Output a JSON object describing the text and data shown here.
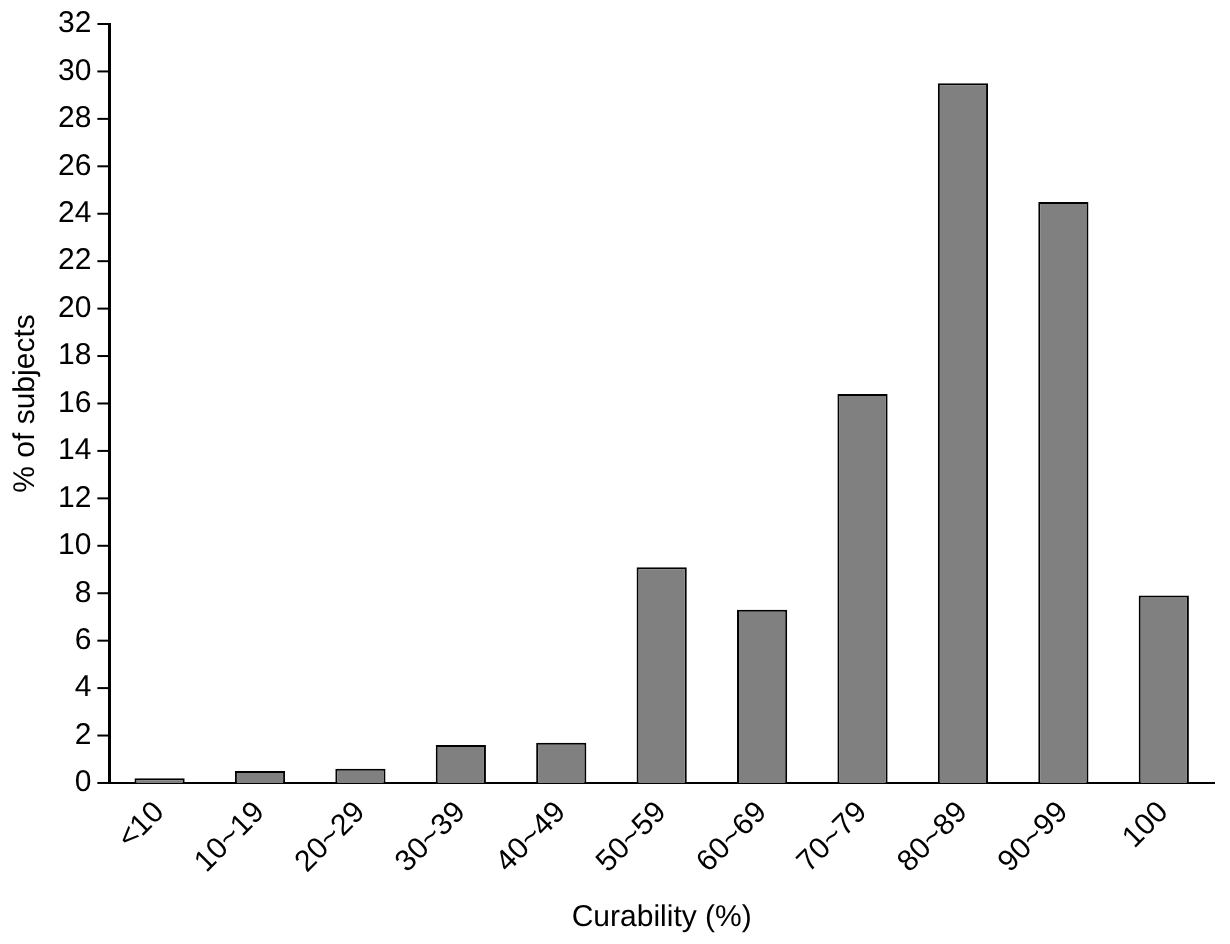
{
  "chart_data": {
    "type": "bar",
    "xlabel": "Curability (%)",
    "ylabel": "% of subjects",
    "categories": [
      "<10",
      "10~19",
      "20~29",
      "30~39",
      "40~49",
      "50~59",
      "60~69",
      "70~79",
      "80~89",
      "90~99",
      "100"
    ],
    "values": [
      0.2,
      0.5,
      0.6,
      1.6,
      1.7,
      9.1,
      7.3,
      16.4,
      29.5,
      24.5,
      7.9
    ],
    "color": "#808080",
    "ylim": [
      0,
      32
    ],
    "yticks": [
      0,
      2,
      4,
      6,
      8,
      10,
      12,
      14,
      16,
      18,
      20,
      22,
      24,
      26,
      28,
      30,
      32
    ],
    "grid": false,
    "legend": false
  }
}
